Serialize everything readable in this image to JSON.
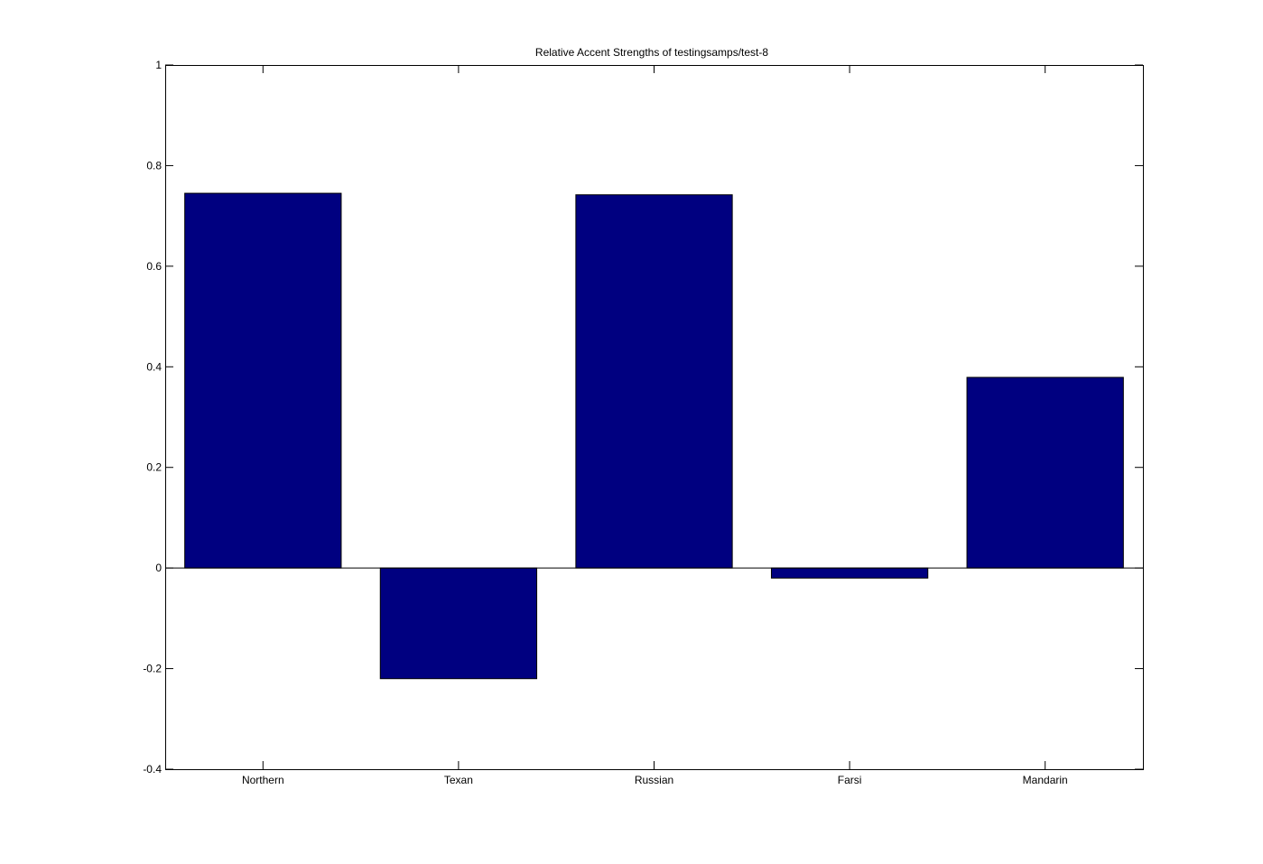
{
  "chart_data": {
    "type": "bar",
    "title": "Relative Accent Strengths of testingsamps/test-8",
    "categories": [
      "Northern",
      "Texan",
      "Russian",
      "Farsi",
      "Mandarin"
    ],
    "values": [
      0.745,
      -0.22,
      0.742,
      -0.02,
      0.379
    ],
    "ylim": [
      -0.4,
      1
    ],
    "yticks": [
      "-0.4",
      "-0.2",
      "0",
      "0.2",
      "0.4",
      "0.6",
      "0.8",
      "1"
    ],
    "xlabel": "",
    "ylabel": "",
    "bar_color": "#000080",
    "grid": false,
    "legend": false
  }
}
